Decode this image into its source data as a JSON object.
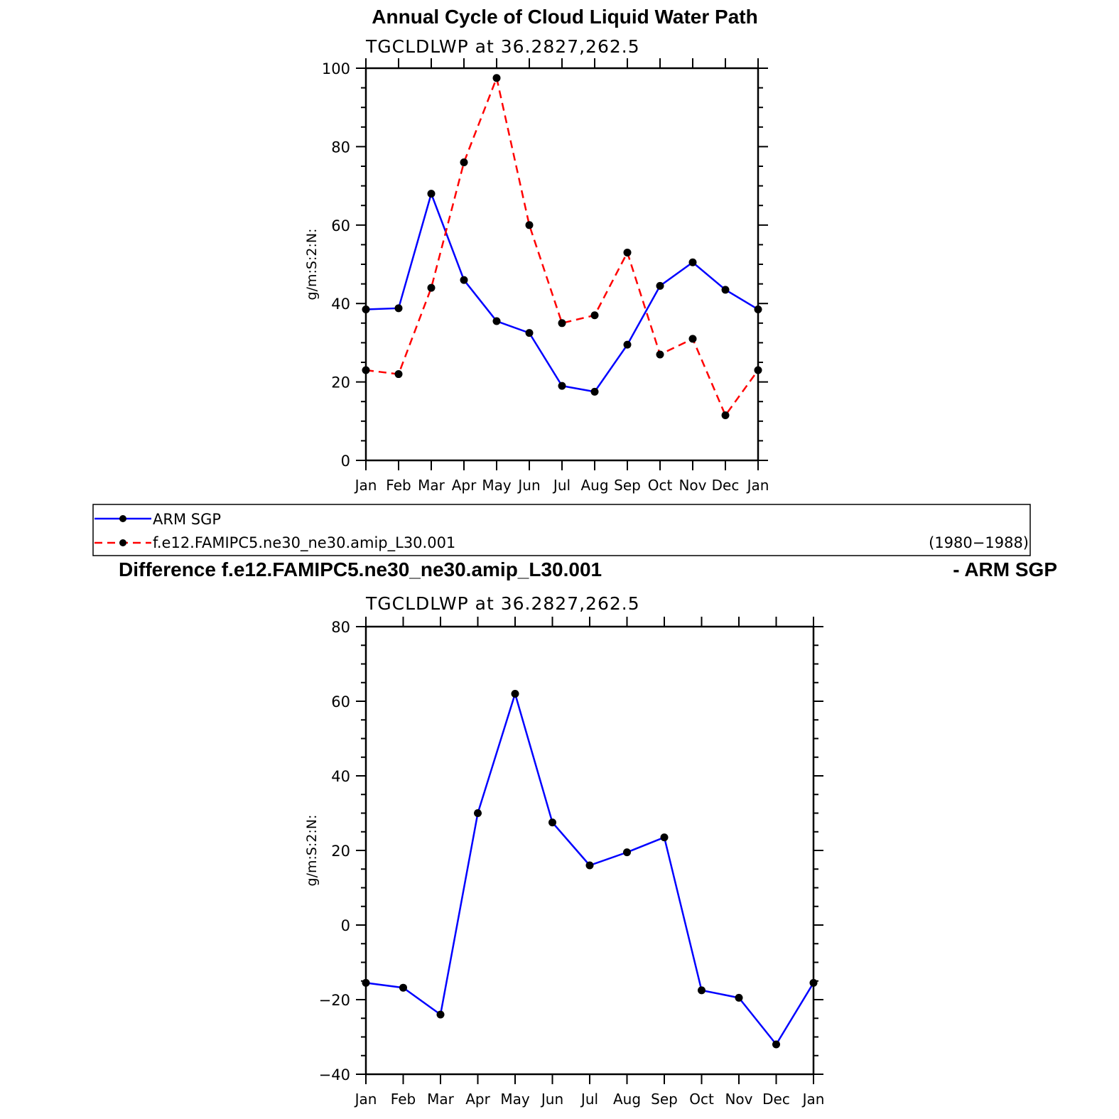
{
  "chart_data": [
    {
      "type": "line",
      "title": "Annual Cycle of Cloud Liquid Water Path",
      "subtitle": "TGCLDLWP  at  36.2827,262.5",
      "ylabel": "g/m:S:2:N:",
      "xlabel": "",
      "categories": [
        "Jan",
        "Feb",
        "Mar",
        "Apr",
        "May",
        "Jun",
        "Jul",
        "Aug",
        "Sep",
        "Oct",
        "Nov",
        "Dec",
        "Jan"
      ],
      "ylim": [
        0,
        100
      ],
      "yticks": [
        0,
        20,
        40,
        60,
        80,
        100
      ],
      "series": [
        {
          "name": "ARM SGP",
          "color": "#0000ff",
          "dash": "solid",
          "values": [
            38.5,
            38.8,
            68.0,
            46.0,
            35.5,
            32.5,
            19.0,
            17.5,
            29.5,
            44.5,
            50.5,
            43.5,
            38.5
          ]
        },
        {
          "name": "f.e12.FAMIPC5.ne30_ne30.amip_L30.001",
          "color": "#ff0000",
          "dash": "dashed",
          "values": [
            23.0,
            22.0,
            44.0,
            76.0,
            97.5,
            60.0,
            35.0,
            37.0,
            53.0,
            27.0,
            31.0,
            11.5,
            23.0
          ]
        }
      ],
      "legend": {
        "placement": "below",
        "entries": [
          "ARM SGP",
          "f.e12.FAMIPC5.ne30_ne30.amip_L30.001"
        ],
        "period": "(1980−1988)"
      }
    },
    {
      "type": "line",
      "title_left": "Difference f.e12.FAMIPC5.ne30_ne30.amip_L30.001",
      "title_right": "- ARM SGP",
      "subtitle": "TGCLDLWP  at  36.2827,262.5",
      "ylabel": "g/m:S:2:N:",
      "xlabel": "",
      "categories": [
        "Jan",
        "Feb",
        "Mar",
        "Apr",
        "May",
        "Jun",
        "Jul",
        "Aug",
        "Sep",
        "Oct",
        "Nov",
        "Dec",
        "Jan"
      ],
      "ylim": [
        -40,
        80
      ],
      "yticks": [
        -40,
        -20,
        0,
        20,
        40,
        60,
        80
      ],
      "series": [
        {
          "name": "Difference",
          "color": "#0000ff",
          "dash": "solid",
          "values": [
            -15.5,
            -16.8,
            -24.0,
            30.0,
            62.0,
            27.5,
            16.0,
            19.5,
            23.5,
            -17.5,
            -19.5,
            -32.0,
            -15.5
          ]
        }
      ]
    }
  ]
}
